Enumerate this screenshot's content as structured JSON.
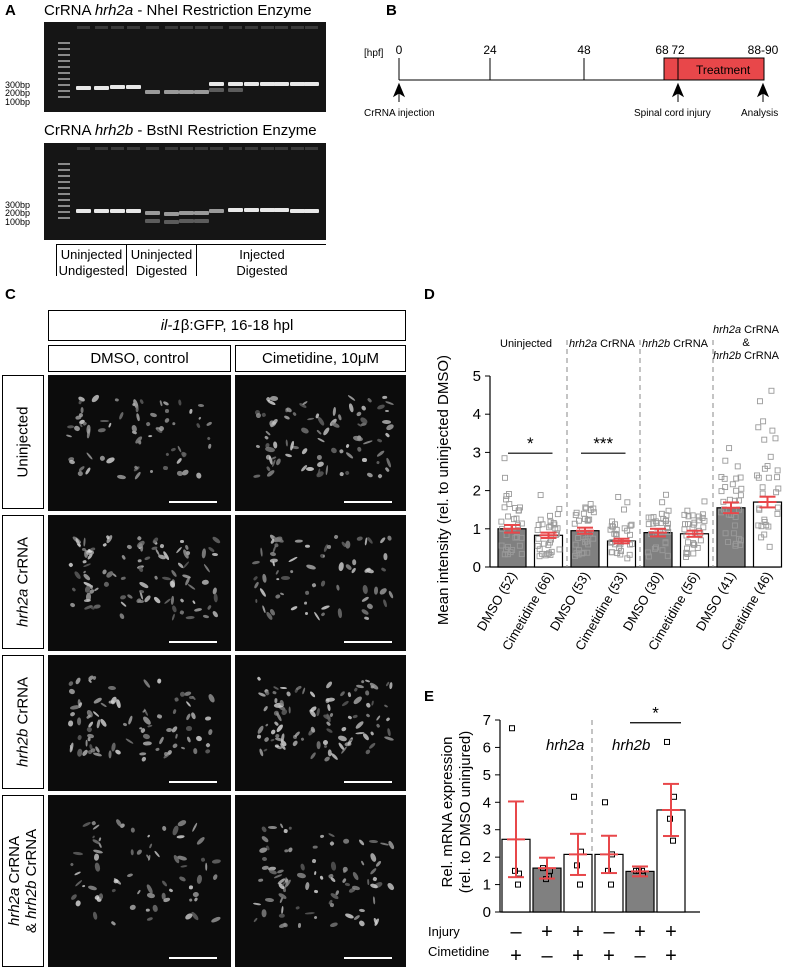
{
  "panel_labels": {
    "a": "A",
    "b": "B",
    "c": "C",
    "d": "D",
    "e": "E"
  },
  "panelA": {
    "gel1_title_pre": "CrRNA ",
    "gel1_gene": "hrh2a",
    "gel1_title_post": " - NheI Restriction Enzyme",
    "gel2_title_pre": "CrRNA ",
    "gel2_gene": "hrh2b",
    "gel2_title_post": " - BstNI Restriction Enzyme",
    "bp_labels": [
      "300bp",
      "200bp",
      "100bp"
    ],
    "groups": [
      {
        "line1": "Uninjected",
        "line2": "Undigested"
      },
      {
        "line1": "Uninjected",
        "line2": "Digested"
      },
      {
        "line1": "Injected",
        "line2": "Digested"
      }
    ]
  },
  "panelB": {
    "unit": "[hpf]",
    "ticks": [
      "0",
      "24",
      "48",
      "68",
      "72",
      "88-90"
    ],
    "treatment": "Treatment",
    "events": [
      "CrRNA injection",
      "Spinal cord injury",
      "Analysis"
    ],
    "colors": {
      "treatment": "#e8474a"
    }
  },
  "panelC": {
    "header_pre": "il-1",
    "header_beta": "β",
    "header_post": ":GFP, 16-18 hpl",
    "col1": "DMSO, control",
    "col2": "Cimetidine, 10μM",
    "row1": "Uninjected",
    "row2_gene": "hrh2a",
    "row2_post": " CrRNA",
    "row3_gene": "hrh2b",
    "row3_post": " CrRNA",
    "row4_gene1": "hrh2a",
    "row4_post1": " CrRNA",
    "row4_amp": "& ",
    "row4_gene2": "hrh2b",
    "row4_post2": " CrRNA"
  },
  "chart_data": [
    {
      "type": "bar",
      "panel": "D",
      "ylabel": "Mean intensity (rel. to uninjected DMSO)",
      "ylim": [
        0,
        5
      ],
      "yticks": [
        "0",
        "1",
        "2",
        "3",
        "4",
        "5"
      ],
      "group_labels": [
        "Uninjected",
        "hrh2a CrRNA",
        "hrh2b CrRNA",
        "hrh2a CrRNA & hrh2b CrRNA"
      ],
      "group_label_parts": {
        "g1": "Uninjected",
        "g2_gene": "hrh2a",
        "g2_post": " CrRNA",
        "g3_gene": "hrh2b",
        "g3_post": " CrRNA",
        "g4_gene1": "hrh2a",
        "g4_post1": " CrRNA",
        "g4_amp": "&",
        "g4_gene2": "hrh2b",
        "g4_post2": " CrRNA"
      },
      "categories": [
        "DMSO (52)",
        "Cimetidine (66)",
        "DMSO (53)",
        "Cimetidine (53)",
        "DMSO (30)",
        "Cimetidine (56)",
        "DMSO (41)",
        "Cimetidine (46)"
      ],
      "values": [
        1.0,
        0.83,
        0.95,
        0.68,
        0.9,
        0.87,
        1.55,
        1.7
      ],
      "errors": [
        0.1,
        0.07,
        0.08,
        0.06,
        0.1,
        0.08,
        0.14,
        0.14
      ],
      "fills": [
        "#808080",
        "#ffffff",
        "#808080",
        "#ffffff",
        "#808080",
        "#ffffff",
        "#808080",
        "#ffffff"
      ],
      "significance": [
        {
          "between": [
            0,
            1
          ],
          "label": "*"
        },
        {
          "between": [
            2,
            3
          ],
          "label": "***"
        }
      ],
      "colors": {
        "error": "#e8474a",
        "points": "#9a9a9a"
      }
    },
    {
      "type": "bar",
      "panel": "E",
      "ylabel_line1": "Rel. mRNA expression",
      "ylabel_line2": "(rel. to DMSO uninjured)",
      "ylim": [
        0,
        7
      ],
      "yticks": [
        "0",
        "1",
        "2",
        "3",
        "4",
        "5",
        "6",
        "7"
      ],
      "group_labels": [
        "hrh2a",
        "hrh2b"
      ],
      "values": [
        2.65,
        1.6,
        2.1,
        2.1,
        1.48,
        3.72
      ],
      "errors": [
        1.38,
        0.38,
        0.75,
        0.68,
        0.18,
        0.95
      ],
      "fills": [
        "#ffffff",
        "#808080",
        "#ffffff",
        "#ffffff",
        "#808080",
        "#ffffff"
      ],
      "points": [
        [
          6.7,
          1.4,
          1.5,
          1.0
        ],
        [
          1.6,
          1.5,
          1.2,
          1.3
        ],
        [
          4.2,
          2.2,
          1.7,
          1.0
        ],
        [
          4.0,
          2.1,
          1.5,
          1.0
        ],
        [
          1.5,
          1.4,
          1.5,
          1.5
        ],
        [
          6.2,
          4.2,
          3.4,
          2.6
        ]
      ],
      "row_labels": [
        "Injury",
        "Cimetidine"
      ],
      "injury": [
        "–",
        "+",
        "+",
        "–",
        "+",
        "+"
      ],
      "cimetidine": [
        "+",
        "–",
        "+",
        "+",
        "–",
        "+"
      ],
      "significance": [
        {
          "between": [
            4,
            5
          ],
          "label": "*"
        }
      ],
      "colors": {
        "error": "#e8474a"
      }
    }
  ]
}
